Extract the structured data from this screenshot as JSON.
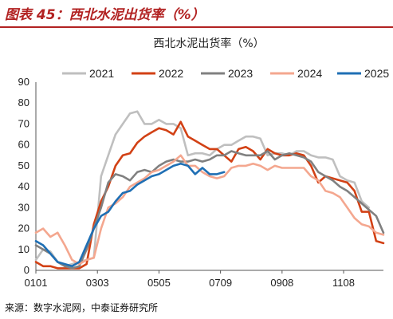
{
  "figure_title": "图表 45：西北水泥出货率（%）",
  "source_note": "来源：数字水泥网，中泰证券研究所",
  "chart_data": {
    "type": "line",
    "title": "西北水泥出货率（%）",
    "xlabel": "",
    "ylabel": "",
    "ylim": [
      0,
      90
    ],
    "yticks": [
      0,
      10,
      20,
      30,
      40,
      50,
      60,
      70,
      80,
      90
    ],
    "x_range": [
      1,
      49
    ],
    "x_ticks": [
      {
        "x": 1,
        "label": "0101"
      },
      {
        "x": 9.5,
        "label": "0303"
      },
      {
        "x": 18,
        "label": "0505"
      },
      {
        "x": 26.5,
        "label": "0709"
      },
      {
        "x": 35,
        "label": "0908"
      },
      {
        "x": 43.5,
        "label": "1108"
      }
    ],
    "grid": false,
    "legend_position": "top",
    "series": [
      {
        "name": "2021",
        "color": "#bfbfbf",
        "points": [
          [
            1,
            5
          ],
          [
            2,
            10
          ],
          [
            3,
            9
          ],
          [
            4,
            4
          ],
          [
            5,
            2
          ],
          [
            6,
            3
          ],
          [
            7,
            4
          ],
          [
            8,
            5
          ],
          [
            9,
            6
          ],
          [
            10,
            45
          ],
          [
            11,
            55
          ],
          [
            12,
            65
          ],
          [
            13,
            70
          ],
          [
            14,
            75
          ],
          [
            15,
            76
          ],
          [
            16,
            70
          ],
          [
            17,
            70
          ],
          [
            18,
            72
          ],
          [
            19,
            70
          ],
          [
            20,
            70
          ],
          [
            21,
            68
          ],
          [
            22,
            55
          ],
          [
            23,
            56
          ],
          [
            24,
            56
          ],
          [
            25,
            55
          ],
          [
            26,
            58
          ],
          [
            27,
            60
          ],
          [
            28,
            60
          ],
          [
            29,
            62
          ],
          [
            30,
            64
          ],
          [
            31,
            64
          ],
          [
            32,
            63
          ],
          [
            33,
            55
          ],
          [
            34,
            56
          ],
          [
            35,
            56
          ],
          [
            36,
            55
          ],
          [
            37,
            57
          ],
          [
            38,
            57
          ],
          [
            39,
            55
          ],
          [
            40,
            54
          ],
          [
            41,
            54
          ],
          [
            42,
            53
          ],
          [
            43,
            45
          ],
          [
            44,
            43
          ],
          [
            45,
            42
          ],
          [
            46,
            33
          ],
          [
            47,
            30
          ]
        ]
      },
      {
        "name": "2022",
        "color": "#d24115",
        "points": [
          [
            1,
            4
          ],
          [
            2,
            2
          ],
          [
            3,
            2
          ],
          [
            4,
            1
          ],
          [
            5,
            1
          ],
          [
            6,
            1
          ],
          [
            7,
            1
          ],
          [
            8,
            3
          ],
          [
            9,
            22
          ],
          [
            10,
            33
          ],
          [
            11,
            40
          ],
          [
            12,
            50
          ],
          [
            13,
            55
          ],
          [
            14,
            56
          ],
          [
            15,
            61
          ],
          [
            16,
            64
          ],
          [
            17,
            66
          ],
          [
            18,
            68
          ],
          [
            19,
            67
          ],
          [
            20,
            65
          ],
          [
            21,
            71
          ],
          [
            22,
            64
          ],
          [
            23,
            62
          ],
          [
            24,
            60
          ],
          [
            25,
            58
          ],
          [
            26,
            58
          ],
          [
            27,
            55
          ],
          [
            28,
            52
          ],
          [
            29,
            58
          ],
          [
            30,
            59
          ],
          [
            31,
            57
          ],
          [
            32,
            53
          ],
          [
            33,
            58
          ],
          [
            34,
            56
          ],
          [
            35,
            55
          ],
          [
            36,
            55
          ],
          [
            37,
            56
          ],
          [
            38,
            55
          ],
          [
            39,
            50
          ],
          [
            40,
            42
          ],
          [
            41,
            45
          ],
          [
            42,
            44
          ],
          [
            43,
            43
          ],
          [
            44,
            42
          ],
          [
            45,
            38
          ],
          [
            46,
            28
          ],
          [
            47,
            28
          ],
          [
            48,
            14
          ],
          [
            49,
            13
          ]
        ]
      },
      {
        "name": "2023",
        "color": "#808080",
        "points": [
          [
            1,
            12
          ],
          [
            2,
            10
          ],
          [
            3,
            8
          ],
          [
            4,
            4
          ],
          [
            5,
            2
          ],
          [
            6,
            1
          ],
          [
            7,
            2
          ],
          [
            8,
            10
          ],
          [
            9,
            20
          ],
          [
            10,
            30
          ],
          [
            11,
            42
          ],
          [
            12,
            46
          ],
          [
            13,
            45
          ],
          [
            14,
            43
          ],
          [
            15,
            47
          ],
          [
            16,
            48
          ],
          [
            17,
            47
          ],
          [
            18,
            50
          ],
          [
            19,
            52
          ],
          [
            20,
            53
          ],
          [
            21,
            52
          ],
          [
            22,
            52
          ],
          [
            23,
            53
          ],
          [
            24,
            52
          ],
          [
            25,
            53
          ],
          [
            26,
            55
          ],
          [
            27,
            55
          ],
          [
            28,
            57
          ],
          [
            29,
            56
          ],
          [
            30,
            55
          ],
          [
            31,
            55
          ],
          [
            32,
            55
          ],
          [
            33,
            57
          ],
          [
            34,
            53
          ],
          [
            35,
            55
          ],
          [
            36,
            56
          ],
          [
            37,
            55
          ],
          [
            38,
            54
          ],
          [
            39,
            52
          ],
          [
            40,
            47
          ],
          [
            41,
            45
          ],
          [
            42,
            43
          ],
          [
            43,
            40
          ],
          [
            44,
            38
          ],
          [
            45,
            35
          ],
          [
            46,
            32
          ],
          [
            47,
            29
          ],
          [
            48,
            26
          ],
          [
            49,
            18
          ]
        ]
      },
      {
        "name": "2024",
        "color": "#f4a78f",
        "points": [
          [
            1,
            18
          ],
          [
            2,
            20
          ],
          [
            3,
            16
          ],
          [
            4,
            18
          ],
          [
            5,
            12
          ],
          [
            6,
            5
          ],
          [
            7,
            3
          ],
          [
            8,
            5
          ],
          [
            9,
            6
          ],
          [
            10,
            20
          ],
          [
            11,
            30
          ],
          [
            12,
            32
          ],
          [
            13,
            35
          ],
          [
            14,
            40
          ],
          [
            15,
            42
          ],
          [
            16,
            44
          ],
          [
            17,
            47
          ],
          [
            18,
            48
          ],
          [
            19,
            50
          ],
          [
            20,
            52
          ],
          [
            21,
            55
          ],
          [
            22,
            50
          ],
          [
            23,
            50
          ],
          [
            24,
            47
          ],
          [
            25,
            45
          ],
          [
            26,
            44
          ],
          [
            27,
            45
          ],
          [
            28,
            49
          ],
          [
            29,
            50
          ],
          [
            30,
            50
          ],
          [
            31,
            51
          ],
          [
            32,
            50
          ],
          [
            33,
            48
          ],
          [
            34,
            50
          ],
          [
            35,
            49
          ],
          [
            36,
            49
          ],
          [
            37,
            49
          ],
          [
            38,
            49
          ],
          [
            39,
            45
          ],
          [
            40,
            43
          ],
          [
            41,
            38
          ],
          [
            42,
            37
          ],
          [
            43,
            35
          ],
          [
            44,
            30
          ],
          [
            45,
            25
          ],
          [
            46,
            22
          ],
          [
            47,
            21
          ],
          [
            48,
            18
          ],
          [
            49,
            17
          ]
        ]
      },
      {
        "name": "2025",
        "color": "#1f6fb4",
        "points": [
          [
            1,
            14
          ],
          [
            2,
            12
          ],
          [
            3,
            8
          ],
          [
            4,
            4
          ],
          [
            5,
            3
          ],
          [
            6,
            2
          ],
          [
            7,
            4
          ],
          [
            8,
            12
          ],
          [
            9,
            20
          ],
          [
            10,
            26
          ],
          [
            11,
            28
          ],
          [
            12,
            33
          ],
          [
            13,
            37
          ],
          [
            14,
            38
          ],
          [
            15,
            41
          ],
          [
            16,
            43
          ],
          [
            17,
            45
          ],
          [
            18,
            46
          ],
          [
            19,
            48
          ],
          [
            20,
            50
          ],
          [
            21,
            51
          ],
          [
            22,
            50
          ],
          [
            23,
            46
          ],
          [
            24,
            49
          ],
          [
            25,
            46
          ],
          [
            26,
            46
          ],
          [
            27,
            47
          ]
        ]
      }
    ]
  }
}
